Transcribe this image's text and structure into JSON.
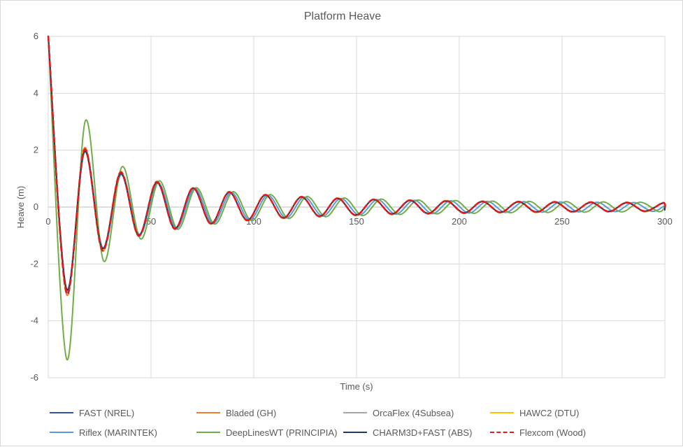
{
  "chart_data": {
    "type": "line",
    "title": "Platform Heave",
    "xlabel": "Time (s)",
    "ylabel": "Heave (m)",
    "xlim": [
      0,
      300
    ],
    "ylim": [
      -6,
      6
    ],
    "x_ticks": [
      0,
      50,
      100,
      150,
      200,
      250,
      300
    ],
    "y_ticks": [
      -6,
      -4,
      -2,
      0,
      2,
      4,
      6
    ],
    "x_tick_labels": [
      "0",
      "50",
      "100",
      "150",
      "200",
      "250",
      "300"
    ],
    "y_tick_labels": [
      "-6",
      "-4",
      "-2",
      "0",
      "2",
      "4",
      "6"
    ],
    "grid": true,
    "legend_position": "bottom",
    "series": [
      {
        "name": "FAST (NREL)",
        "color": "#2f5597",
        "dash": "solid",
        "x": [
          0,
          8.8,
          17.6,
          26.4,
          35.2,
          44.0,
          52.8,
          61.6,
          70.4,
          79.2,
          88.0,
          96.8,
          105.6,
          114.4,
          123.2,
          132.0,
          140.8,
          149.6,
          158.4,
          167.2,
          176.0,
          184.8,
          193.6,
          202.4,
          211.2,
          220.0,
          228.8,
          237.6,
          246.4,
          255.2,
          264.0,
          272.8,
          281.6,
          290.4,
          299.2,
          300
        ],
        "y": [
          6.0,
          -2.95,
          2.0,
          -1.5,
          1.2,
          -1.0,
          0.88,
          -0.76,
          0.67,
          -0.59,
          0.53,
          -0.47,
          0.43,
          -0.39,
          0.36,
          -0.33,
          0.31,
          -0.29,
          0.27,
          -0.25,
          0.24,
          -0.23,
          0.22,
          -0.21,
          0.2,
          -0.19,
          0.19,
          -0.18,
          0.18,
          -0.17,
          0.17,
          -0.16,
          0.16,
          -0.15,
          0.15,
          -0.1
        ]
      },
      {
        "name": "Bladed (GH)",
        "color": "#ed7d31",
        "dash": "solid",
        "x": [
          0,
          8.8,
          17.6,
          26.4,
          35.2,
          44.0,
          52.8,
          61.6,
          70.4,
          79.2,
          88.0,
          96.8,
          105.6,
          114.4,
          123.2,
          132.0,
          140.8,
          149.6,
          158.4,
          167.2,
          176.0,
          184.8,
          193.6,
          202.4,
          211.2,
          220.0,
          228.8,
          237.6,
          246.4,
          255.2,
          264.0,
          272.8,
          281.6,
          290.4,
          299.2,
          300
        ],
        "y": [
          6.0,
          -3.05,
          2.08,
          -1.55,
          1.25,
          -1.03,
          0.9,
          -0.78,
          0.68,
          -0.6,
          0.54,
          -0.48,
          0.44,
          -0.4,
          0.37,
          -0.34,
          0.32,
          -0.3,
          0.28,
          -0.26,
          0.25,
          -0.24,
          0.23,
          -0.22,
          0.21,
          -0.2,
          0.2,
          -0.19,
          0.19,
          -0.18,
          0.18,
          -0.17,
          0.17,
          -0.16,
          0.16,
          -0.1
        ]
      },
      {
        "name": "OrcaFlex (4Subsea)",
        "color": "#a5a5a5",
        "dash": "solid",
        "x": [
          0,
          8.8,
          17.6,
          26.4,
          35.2,
          44.0,
          52.8,
          61.6,
          70.4,
          79.2,
          88.0,
          96.8,
          105.6,
          114.4,
          123.2,
          132.0,
          140.8,
          149.6,
          158.4,
          167.2,
          176.0,
          184.8,
          193.6,
          202.4,
          211.2,
          220.0,
          228.8,
          237.6,
          246.4,
          255.2,
          264.0,
          272.8,
          281.6,
          290.4,
          299.2,
          300
        ],
        "y": [
          6.0,
          -2.9,
          1.98,
          -1.48,
          1.18,
          -0.99,
          0.87,
          -0.75,
          0.66,
          -0.58,
          0.52,
          -0.46,
          0.42,
          -0.38,
          0.35,
          -0.32,
          0.3,
          -0.28,
          0.26,
          -0.24,
          0.23,
          -0.22,
          0.21,
          -0.2,
          0.19,
          -0.18,
          0.18,
          -0.17,
          0.17,
          -0.16,
          0.16,
          -0.15,
          0.15,
          -0.14,
          0.14,
          -0.1
        ]
      },
      {
        "name": "HAWC2 (DTU)",
        "color": "#ffc000",
        "dash": "solid",
        "x": [
          0,
          8.8,
          17.6,
          26.4,
          35.2,
          44.0,
          52.8,
          61.6,
          70.4,
          79.2,
          88.0,
          96.8,
          105.6,
          114.4,
          123.2,
          132.0,
          140.8,
          149.6,
          158.4,
          167.2,
          176.0,
          184.8,
          193.6,
          202.4,
          211.2,
          220.0,
          228.8,
          237.6,
          246.4,
          255.2,
          264.0,
          272.8,
          281.6,
          290.4,
          299.2,
          300
        ],
        "y": [
          6.0,
          -2.95,
          2.0,
          -1.5,
          1.2,
          -1.0,
          0.88,
          -0.76,
          0.67,
          -0.59,
          0.53,
          -0.47,
          0.43,
          -0.39,
          0.36,
          -0.33,
          0.31,
          -0.29,
          0.27,
          -0.25,
          0.24,
          -0.23,
          0.22,
          -0.21,
          0.2,
          -0.19,
          0.19,
          -0.18,
          0.18,
          -0.17,
          0.17,
          -0.16,
          0.16,
          -0.15,
          0.15,
          -0.1
        ]
      },
      {
        "name": "Riflex (MARINTEK)",
        "color": "#5b9bd5",
        "dash": "solid",
        "x": [
          0,
          8.9,
          17.8,
          26.7,
          35.6,
          44.5,
          53.4,
          62.3,
          71.2,
          80.1,
          89.0,
          97.9,
          106.8,
          115.7,
          124.6,
          133.5,
          142.4,
          151.3,
          160.2,
          169.1,
          178.0,
          186.9,
          195.8,
          204.7,
          213.6,
          222.5,
          231.4,
          240.3,
          249.2,
          258.1,
          267.0,
          275.9,
          284.8,
          293.7,
          300
        ],
        "y": [
          6.0,
          -2.9,
          1.95,
          -1.45,
          1.15,
          -0.97,
          0.86,
          -0.75,
          0.66,
          -0.58,
          0.52,
          -0.46,
          0.42,
          -0.38,
          0.35,
          -0.32,
          0.3,
          -0.28,
          0.26,
          -0.25,
          0.24,
          -0.23,
          0.22,
          -0.21,
          0.2,
          -0.19,
          0.19,
          -0.18,
          0.18,
          -0.17,
          0.17,
          -0.16,
          0.16,
          -0.15,
          0.05
        ]
      },
      {
        "name": "DeepLinesWT (PRINCIPIA)",
        "color": "#70ad47",
        "dash": "solid",
        "x": [
          0,
          9.0,
          18.0,
          27.0,
          36.0,
          45.0,
          54.0,
          63.0,
          72.0,
          81.0,
          90.0,
          99.0,
          108.0,
          117.0,
          126.0,
          135.0,
          144.0,
          153.0,
          162.0,
          171.0,
          180.0,
          189.0,
          198.0,
          207.0,
          216.0,
          225.0,
          234.0,
          243.0,
          252.0,
          261.0,
          270.0,
          279.0,
          288.0,
          297.0,
          300
        ],
        "y": [
          6.0,
          -5.35,
          3.02,
          -1.9,
          1.42,
          -1.12,
          0.92,
          -0.78,
          0.68,
          -0.6,
          0.54,
          -0.48,
          0.44,
          -0.4,
          0.37,
          -0.34,
          0.32,
          -0.3,
          0.28,
          -0.26,
          0.25,
          -0.24,
          0.23,
          -0.22,
          0.21,
          -0.2,
          0.2,
          -0.19,
          0.19,
          -0.18,
          0.18,
          -0.17,
          0.17,
          -0.16,
          0.0
        ]
      },
      {
        "name": "CHARM3D+FAST (ABS)",
        "color": "#1f3864",
        "dash": "solid",
        "x": [
          0,
          8.8,
          17.6,
          26.4,
          35.2,
          44.0,
          52.8,
          61.6,
          70.4,
          79.2,
          88.0,
          96.8,
          105.6,
          114.4,
          123.2,
          132.0,
          140.8,
          149.6,
          158.4,
          167.2,
          176.0,
          184.8,
          193.6,
          202.4,
          211.2,
          220.0,
          228.8,
          237.6,
          246.4,
          255.2,
          264.0,
          272.8,
          281.6,
          290.4,
          299.2,
          300
        ],
        "y": [
          6.0,
          -2.85,
          1.95,
          -1.45,
          1.17,
          -0.98,
          0.86,
          -0.75,
          0.66,
          -0.58,
          0.52,
          -0.46,
          0.42,
          -0.38,
          0.35,
          -0.32,
          0.3,
          -0.28,
          0.26,
          -0.24,
          0.23,
          -0.22,
          0.21,
          -0.2,
          0.19,
          -0.18,
          0.18,
          -0.17,
          0.17,
          -0.16,
          0.16,
          -0.15,
          0.15,
          -0.14,
          0.14,
          -0.1
        ]
      },
      {
        "name": "Flexcom (Wood)",
        "color": "#e31a1c",
        "dash": "dashed",
        "x": [
          0,
          8.8,
          17.6,
          26.4,
          35.2,
          44.0,
          52.8,
          61.6,
          70.4,
          79.2,
          88.0,
          96.8,
          105.6,
          114.4,
          123.2,
          132.0,
          140.8,
          149.6,
          158.4,
          167.2,
          176.0,
          184.8,
          193.6,
          202.4,
          211.2,
          220.0,
          228.8,
          237.6,
          246.4,
          255.2,
          264.0,
          272.8,
          281.6,
          290.4,
          299.2,
          300
        ],
        "y": [
          6.0,
          -3.0,
          2.02,
          -1.52,
          1.22,
          -1.01,
          0.89,
          -0.77,
          0.67,
          -0.59,
          0.53,
          -0.47,
          0.43,
          -0.39,
          0.36,
          -0.33,
          0.31,
          -0.29,
          0.27,
          -0.25,
          0.24,
          -0.23,
          0.22,
          -0.21,
          0.2,
          -0.19,
          0.19,
          -0.18,
          0.18,
          -0.17,
          0.17,
          -0.16,
          0.16,
          -0.15,
          0.15,
          -0.1
        ]
      }
    ]
  }
}
